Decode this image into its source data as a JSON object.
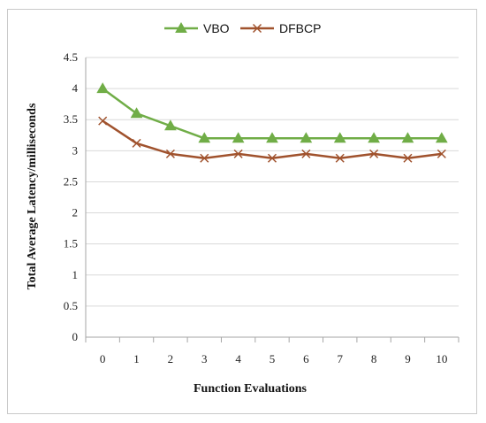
{
  "chart_data": {
    "type": "line",
    "title": "",
    "xlabel": "Function Evaluations",
    "ylabel": "Total Average Latency/milliseconds",
    "x": [
      0,
      1,
      2,
      3,
      4,
      5,
      6,
      7,
      8,
      9,
      10
    ],
    "x_tick_labels": [
      "0",
      "1",
      "2",
      "3",
      "4",
      "5",
      "6",
      "7",
      "8",
      "9",
      "10"
    ],
    "ylim": [
      0,
      4.5
    ],
    "y_tick_labels": [
      "0",
      "0.5",
      "1",
      "1.5",
      "2",
      "2.5",
      "3",
      "3.5",
      "4",
      "4.5"
    ],
    "grid": "horizontal",
    "legend_position": "top",
    "series": [
      {
        "name": "VBO",
        "color": "#70ad47",
        "marker": "triangle",
        "values": [
          4.0,
          3.6,
          3.4,
          3.2,
          3.2,
          3.2,
          3.2,
          3.2,
          3.2,
          3.2,
          3.2
        ]
      },
      {
        "name": "DFBCP",
        "color": "#a0522d",
        "marker": "x",
        "values": [
          3.48,
          3.12,
          2.95,
          2.88,
          2.95,
          2.88,
          2.95,
          2.88,
          2.95,
          2.88,
          2.95
        ]
      }
    ]
  }
}
